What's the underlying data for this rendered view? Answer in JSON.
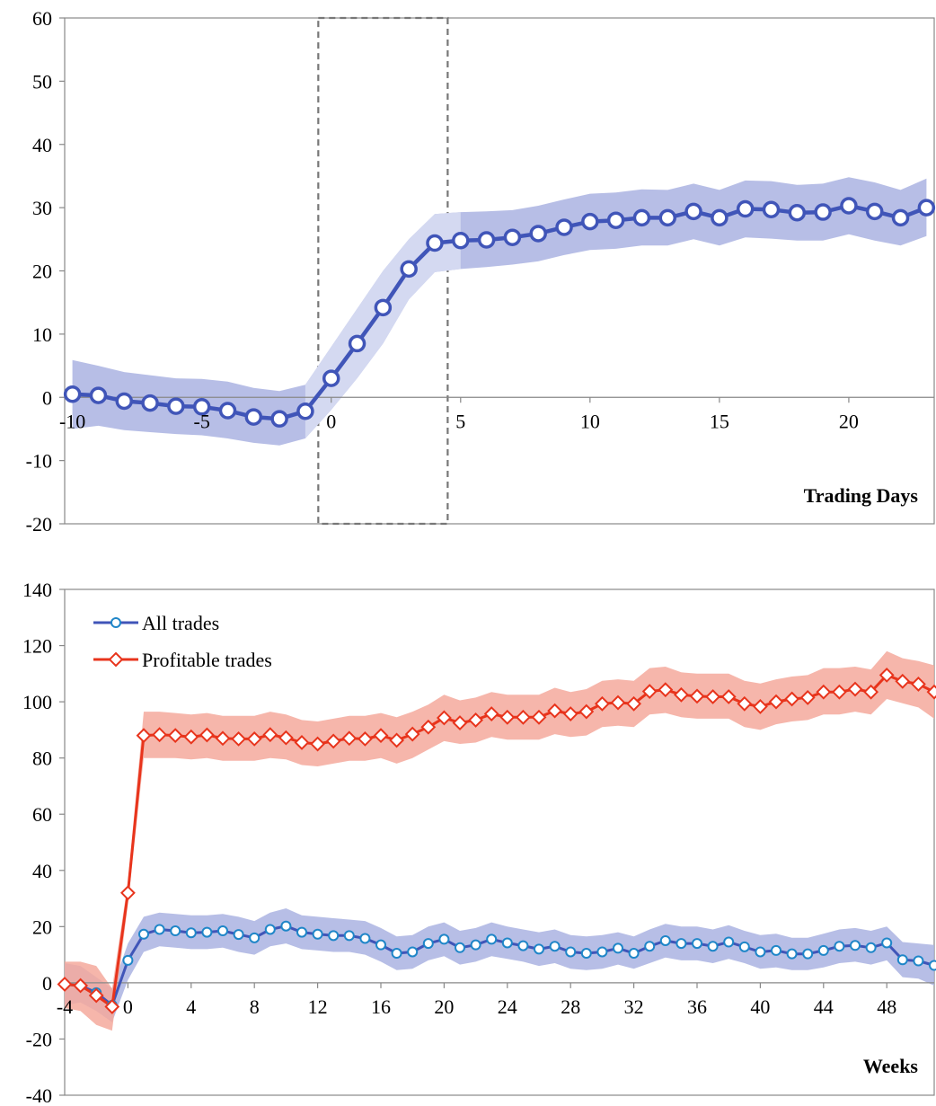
{
  "chart_data": [
    {
      "type": "line",
      "xlabel": "Trading Days",
      "ylabel": "",
      "xlim": [
        -10.3,
        23.3
      ],
      "ylim": [
        -20,
        60
      ],
      "x_ticks": [
        -10,
        -5,
        0,
        5,
        10,
        15,
        20
      ],
      "y_ticks": [
        -20,
        -10,
        0,
        10,
        20,
        30,
        40,
        50,
        60
      ],
      "grid": false,
      "highlight_window": [
        -0.5,
        4.5
      ],
      "series": [
        {
          "color": "#4055b8",
          "band_color": "#aab3e2",
          "band_light_color": "#d4d9f1",
          "x": [
            -10,
            -9,
            -8,
            -7,
            -6,
            -5,
            -4,
            -3,
            -2,
            -1,
            0,
            1,
            2,
            3,
            4,
            5,
            6,
            7,
            8,
            9,
            10,
            11,
            12,
            13,
            14,
            15,
            16,
            17,
            18,
            19,
            20,
            21,
            22,
            23
          ],
          "y": [
            0.5,
            0.3,
            -0.6,
            -0.9,
            -1.4,
            -1.5,
            -2.1,
            -3.1,
            -3.4,
            -2.2,
            3,
            8.5,
            14.2,
            20.3,
            24.4,
            24.8,
            24.9,
            25.3,
            25.9,
            26.9,
            27.8,
            28,
            28.4,
            28.4,
            29.4,
            28.4,
            29.8,
            29.7,
            29.2,
            29.3,
            30.3,
            29.4,
            28.4,
            30
          ],
          "lower": [
            -5,
            -4.5,
            -5.2,
            -5.5,
            -5.8,
            -6,
            -6.5,
            -7.2,
            -7.6,
            -6.5,
            -2,
            3,
            8.5,
            15.5,
            19.8,
            20.3,
            20.6,
            21,
            21.5,
            22.5,
            23.3,
            23.5,
            24,
            24,
            25,
            24,
            25.3,
            25.1,
            24.8,
            24.8,
            25.8,
            24.8,
            24,
            25.5
          ],
          "upper": [
            5.9,
            5,
            4,
            3.5,
            3,
            2.9,
            2.5,
            1.5,
            1,
            2,
            8,
            14,
            20,
            25,
            29,
            29.3,
            29.4,
            29.6,
            30.3,
            31.3,
            32.2,
            32.4,
            32.9,
            32.8,
            33.8,
            32.8,
            34.3,
            34.2,
            33.6,
            33.8,
            34.8,
            34,
            32.8,
            34.6
          ]
        }
      ]
    },
    {
      "type": "line",
      "xlabel": "Weeks",
      "ylabel": "",
      "xlim": [
        -4,
        51
      ],
      "ylim": [
        -40,
        140
      ],
      "x_ticks": [
        -4,
        0,
        4,
        8,
        12,
        16,
        20,
        24,
        28,
        32,
        36,
        40,
        44,
        48
      ],
      "y_ticks": [
        -40,
        -20,
        0,
        20,
        40,
        60,
        80,
        100,
        120,
        140
      ],
      "grid": false,
      "legend_position": "top-left",
      "series": [
        {
          "name": "All trades",
          "color": "#4055b8",
          "band_color": "#aab3e2",
          "x": [
            -4,
            -3,
            -2,
            -1,
            0,
            1,
            2,
            3,
            4,
            5,
            6,
            7,
            8,
            9,
            10,
            11,
            12,
            13,
            14,
            15,
            16,
            17,
            18,
            19,
            20,
            21,
            22,
            23,
            24,
            25,
            26,
            27,
            28,
            29,
            30,
            31,
            32,
            33,
            34,
            35,
            36,
            37,
            38,
            39,
            40,
            41,
            42,
            43,
            44,
            45,
            46,
            47,
            48,
            49,
            50,
            51
          ],
          "y": [
            -0.5,
            -1,
            -3.5,
            -8,
            8,
            17.3,
            19,
            18.5,
            17.8,
            18,
            18.5,
            17.2,
            16,
            19,
            20.2,
            18,
            17.3,
            16.8,
            16.8,
            15.8,
            13.5,
            10.5,
            11,
            14,
            15.5,
            12.5,
            13.5,
            15.5,
            14.2,
            13.2,
            12,
            13,
            11,
            10.5,
            11,
            12.3,
            10.5,
            13,
            15,
            14,
            14,
            13,
            14.5,
            12.8,
            11,
            11.5,
            10.3,
            10.3,
            11.5,
            13,
            13.3,
            12.5,
            14.2,
            8.2,
            7.8,
            6.2
          ],
          "lower": [
            -8,
            -7,
            -10,
            -14,
            1,
            11,
            13,
            12.5,
            12,
            12,
            12.5,
            11,
            10,
            13,
            14,
            12,
            11.5,
            11,
            11,
            10,
            7.5,
            4.5,
            5,
            8,
            9.5,
            6.5,
            7.5,
            9.5,
            8.5,
            7.5,
            6,
            7,
            5,
            4.5,
            5,
            6.5,
            5,
            7,
            9,
            8,
            8,
            7,
            8.5,
            7,
            5,
            5.5,
            4.5,
            4.5,
            5.5,
            7,
            7.5,
            6.5,
            8,
            2,
            1.5,
            -1
          ],
          "upper": [
            7,
            6,
            2,
            -2,
            14,
            23.5,
            25,
            24.5,
            24,
            24,
            24.5,
            23.5,
            22,
            25,
            26.5,
            24,
            23.5,
            23,
            22.5,
            22,
            19.5,
            16.5,
            17,
            20,
            21.5,
            18.5,
            19.5,
            21.5,
            20,
            19,
            18,
            19,
            17,
            16.5,
            17,
            18,
            16.5,
            19,
            21,
            20,
            20,
            19,
            20.5,
            18.5,
            17,
            17.5,
            16,
            16,
            17.5,
            19,
            19.5,
            18.5,
            20,
            14.5,
            14,
            13.5
          ]
        },
        {
          "name": "Profitable trades",
          "color": "#e8341c",
          "band_color": "#f4a99c",
          "x": [
            -4,
            -3,
            -2,
            -1,
            0,
            1,
            2,
            3,
            4,
            5,
            6,
            7,
            8,
            9,
            10,
            11,
            12,
            13,
            14,
            15,
            16,
            17,
            18,
            19,
            20,
            21,
            22,
            23,
            24,
            25,
            26,
            27,
            28,
            29,
            30,
            31,
            32,
            33,
            34,
            35,
            36,
            37,
            38,
            39,
            40,
            41,
            42,
            43,
            44,
            45,
            46,
            47,
            48,
            49,
            50,
            51
          ],
          "y": [
            -0.5,
            -1,
            -4.5,
            -8.5,
            32,
            88,
            88.3,
            88,
            87.5,
            88.2,
            87,
            86.8,
            86.8,
            88.3,
            87.2,
            85.5,
            85,
            86,
            87,
            86.8,
            88,
            86.3,
            88.5,
            91,
            94.3,
            92.5,
            93.5,
            95.7,
            94.5,
            94.5,
            94.5,
            96.8,
            95.7,
            96.5,
            99.3,
            99.7,
            99.3,
            103.7,
            104.3,
            102.5,
            102,
            101.8,
            101.8,
            99.3,
            98.3,
            100,
            101,
            101.5,
            103.5,
            103.5,
            104.5,
            103.5,
            109.5,
            107.3,
            106.3,
            103.5
          ],
          "lower": [
            -9,
            -10,
            -15,
            -17,
            28,
            80,
            80,
            80,
            79.5,
            80,
            79,
            79,
            79,
            80,
            79.5,
            77.5,
            77,
            78,
            79,
            79,
            80,
            78,
            80,
            83,
            86,
            85,
            85.5,
            87.5,
            86.5,
            86.5,
            86.5,
            88.5,
            87.5,
            88,
            91,
            91.5,
            91,
            95.5,
            96,
            94.5,
            94,
            94,
            94,
            91,
            90,
            92,
            93,
            93.5,
            95.5,
            95.5,
            96.5,
            95.5,
            101,
            99.5,
            98,
            94
          ],
          "upper": [
            7.5,
            7.5,
            6,
            -2,
            36,
            96.5,
            96.5,
            96,
            95.5,
            96,
            95,
            95,
            95,
            96.5,
            95.5,
            93.5,
            93,
            94,
            95,
            95,
            96,
            94.5,
            96.5,
            99,
            102.5,
            100.5,
            101.5,
            103.5,
            102.5,
            102.5,
            102.5,
            105,
            103.5,
            104.5,
            107.5,
            108,
            107.5,
            112,
            112.5,
            110.5,
            110,
            110,
            110,
            107.5,
            106.5,
            108,
            109,
            109.5,
            112,
            112,
            112.5,
            111.5,
            118,
            115.5,
            114.5,
            113
          ]
        }
      ]
    }
  ]
}
